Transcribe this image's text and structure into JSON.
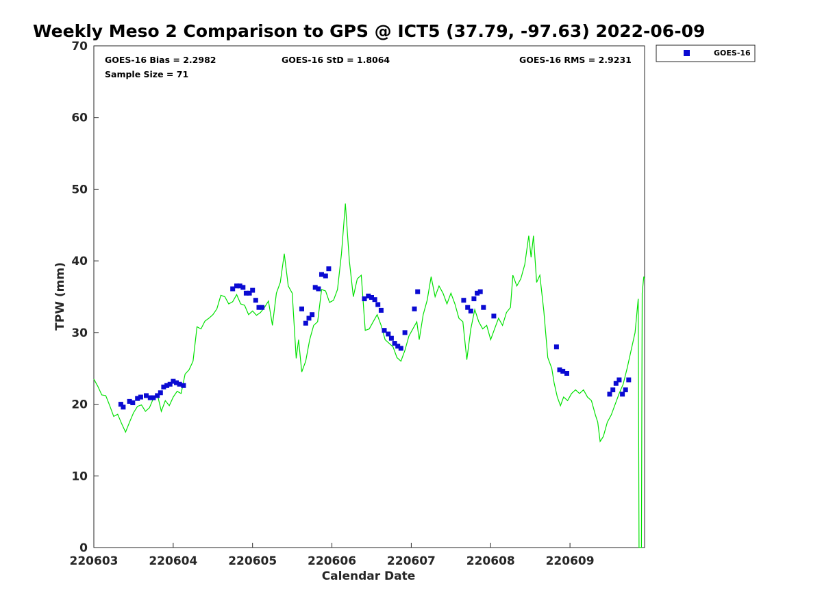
{
  "chart_data": {
    "type": "scatter",
    "title": "Weekly Meso 2 Comparison to GPS @ ICT5 (37.79, -97.63) 2022-06-09",
    "xlabel": "Calendar Date",
    "ylabel": "TPW (mm)",
    "xlim": [
      220603,
      220609.94
    ],
    "ylim": [
      0,
      70
    ],
    "x_ticks": [
      "220603",
      "220604",
      "220605",
      "220606",
      "220607",
      "220608",
      "220609"
    ],
    "y_ticks": [
      "0",
      "10",
      "20",
      "30",
      "40",
      "50",
      "60",
      "70"
    ],
    "grid": false,
    "legend_position": "outside-top-right",
    "stats": {
      "bias": "GOES-16 Bias = 2.2982",
      "std": "GOES-16 StD = 1.8064",
      "rms": "GOES-16 RMS = 2.9231",
      "sample": "Sample Size = 71"
    },
    "series": [
      {
        "name": "GOES-16",
        "kind": "scatter",
        "marker": "square",
        "color": "#0a0ad2",
        "points": [
          [
            220603.34,
            20.0
          ],
          [
            220603.37,
            19.6
          ],
          [
            220603.45,
            20.4
          ],
          [
            220603.49,
            20.2
          ],
          [
            220603.55,
            20.8
          ],
          [
            220603.59,
            21.0
          ],
          [
            220603.66,
            21.2
          ],
          [
            220603.71,
            20.9
          ],
          [
            220603.75,
            20.9
          ],
          [
            220603.8,
            21.2
          ],
          [
            220603.84,
            21.6
          ],
          [
            220603.88,
            22.4
          ],
          [
            220603.92,
            22.6
          ],
          [
            220603.96,
            22.8
          ],
          [
            220604.0,
            23.2
          ],
          [
            220604.04,
            23.0
          ],
          [
            220604.08,
            22.8
          ],
          [
            220604.13,
            22.6
          ],
          [
            220604.75,
            36.1
          ],
          [
            220604.8,
            36.5
          ],
          [
            220604.84,
            36.5
          ],
          [
            220604.88,
            36.3
          ],
          [
            220604.92,
            35.5
          ],
          [
            220604.96,
            35.5
          ],
          [
            220605.0,
            35.9
          ],
          [
            220605.04,
            34.5
          ],
          [
            220605.08,
            33.5
          ],
          [
            220605.12,
            33.5
          ],
          [
            220605.62,
            33.3
          ],
          [
            220605.67,
            31.3
          ],
          [
            220605.71,
            32.0
          ],
          [
            220605.75,
            32.5
          ],
          [
            220605.79,
            36.3
          ],
          [
            220605.83,
            36.1
          ],
          [
            220605.87,
            38.1
          ],
          [
            220605.92,
            37.9
          ],
          [
            220605.96,
            38.9
          ],
          [
            220606.41,
            34.7
          ],
          [
            220606.46,
            35.1
          ],
          [
            220606.5,
            34.9
          ],
          [
            220606.54,
            34.6
          ],
          [
            220606.58,
            33.9
          ],
          [
            220606.62,
            33.1
          ],
          [
            220606.66,
            30.3
          ],
          [
            220606.71,
            29.8
          ],
          [
            220606.75,
            29.2
          ],
          [
            220606.79,
            28.5
          ],
          [
            220606.83,
            28.1
          ],
          [
            220606.87,
            27.8
          ],
          [
            220606.92,
            30.0
          ],
          [
            220607.04,
            33.3
          ],
          [
            220607.08,
            35.7
          ],
          [
            220607.66,
            34.5
          ],
          [
            220607.71,
            33.5
          ],
          [
            220607.75,
            33.0
          ],
          [
            220607.79,
            34.7
          ],
          [
            220607.83,
            35.5
          ],
          [
            220607.87,
            35.7
          ],
          [
            220607.91,
            33.5
          ],
          [
            220608.04,
            32.3
          ],
          [
            220608.83,
            28.0
          ],
          [
            220608.87,
            24.8
          ],
          [
            220608.91,
            24.6
          ],
          [
            220608.96,
            24.3
          ],
          [
            220609.5,
            21.4
          ],
          [
            220609.54,
            22.0
          ],
          [
            220609.58,
            22.9
          ],
          [
            220609.62,
            23.4
          ],
          [
            220609.66,
            21.4
          ],
          [
            220609.7,
            22.0
          ],
          [
            220609.74,
            23.4
          ]
        ]
      },
      {
        "name": "GPS",
        "kind": "line",
        "color": "#00e100",
        "points": [
          [
            220603.0,
            23.5
          ],
          [
            220603.05,
            22.5
          ],
          [
            220603.1,
            21.3
          ],
          [
            220603.15,
            21.2
          ],
          [
            220603.2,
            19.8
          ],
          [
            220603.25,
            18.3
          ],
          [
            220603.3,
            18.6
          ],
          [
            220603.35,
            17.3
          ],
          [
            220603.4,
            16.1
          ],
          [
            220603.45,
            17.5
          ],
          [
            220603.5,
            18.8
          ],
          [
            220603.55,
            19.7
          ],
          [
            220603.6,
            19.9
          ],
          [
            220603.65,
            19.0
          ],
          [
            220603.7,
            19.5
          ],
          [
            220603.75,
            20.8
          ],
          [
            220603.8,
            21.4
          ],
          [
            220603.85,
            19.0
          ],
          [
            220603.9,
            20.5
          ],
          [
            220603.95,
            19.8
          ],
          [
            220604.0,
            21.0
          ],
          [
            220604.05,
            21.8
          ],
          [
            220604.1,
            21.5
          ],
          [
            220604.15,
            24.2
          ],
          [
            220604.2,
            24.8
          ],
          [
            220604.25,
            26.0
          ],
          [
            220604.3,
            30.8
          ],
          [
            220604.35,
            30.5
          ],
          [
            220604.4,
            31.6
          ],
          [
            220604.45,
            32.0
          ],
          [
            220604.5,
            32.5
          ],
          [
            220604.55,
            33.3
          ],
          [
            220604.6,
            35.2
          ],
          [
            220604.65,
            35.0
          ],
          [
            220604.7,
            34.0
          ],
          [
            220604.75,
            34.3
          ],
          [
            220604.8,
            35.3
          ],
          [
            220604.85,
            34.0
          ],
          [
            220604.9,
            33.8
          ],
          [
            220604.95,
            32.5
          ],
          [
            220605.0,
            33.0
          ],
          [
            220605.05,
            32.4
          ],
          [
            220605.1,
            32.8
          ],
          [
            220605.15,
            33.5
          ],
          [
            220605.2,
            34.4
          ],
          [
            220605.25,
            31.0
          ],
          [
            220605.3,
            35.5
          ],
          [
            220605.35,
            37.0
          ],
          [
            220605.4,
            41.0
          ],
          [
            220605.45,
            36.5
          ],
          [
            220605.5,
            35.5
          ],
          [
            220605.55,
            26.4
          ],
          [
            220605.58,
            29.0
          ],
          [
            220605.62,
            24.5
          ],
          [
            220605.67,
            26.0
          ],
          [
            220605.72,
            29.0
          ],
          [
            220605.77,
            31.0
          ],
          [
            220605.82,
            31.5
          ],
          [
            220605.87,
            36.0
          ],
          [
            220605.92,
            35.8
          ],
          [
            220605.97,
            34.2
          ],
          [
            220606.02,
            34.5
          ],
          [
            220606.07,
            36.0
          ],
          [
            220606.12,
            41.0
          ],
          [
            220606.17,
            48.0
          ],
          [
            220606.22,
            40.0
          ],
          [
            220606.27,
            35.0
          ],
          [
            220606.32,
            37.5
          ],
          [
            220606.37,
            38.0
          ],
          [
            220606.42,
            30.3
          ],
          [
            220606.47,
            30.5
          ],
          [
            220606.52,
            31.5
          ],
          [
            220606.57,
            32.5
          ],
          [
            220606.62,
            31.0
          ],
          [
            220606.67,
            29.0
          ],
          [
            220606.72,
            28.5
          ],
          [
            220606.77,
            28.0
          ],
          [
            220606.82,
            26.5
          ],
          [
            220606.87,
            26.0
          ],
          [
            220606.92,
            27.5
          ],
          [
            220606.97,
            29.5
          ],
          [
            220607.02,
            30.5
          ],
          [
            220607.07,
            31.5
          ],
          [
            220607.1,
            29.0
          ],
          [
            220607.15,
            32.5
          ],
          [
            220607.2,
            34.5
          ],
          [
            220607.25,
            37.8
          ],
          [
            220607.3,
            35.0
          ],
          [
            220607.35,
            36.5
          ],
          [
            220607.4,
            35.5
          ],
          [
            220607.45,
            34.0
          ],
          [
            220607.5,
            35.5
          ],
          [
            220607.55,
            34.0
          ],
          [
            220607.6,
            32.0
          ],
          [
            220607.65,
            31.5
          ],
          [
            220607.7,
            26.2
          ],
          [
            220607.75,
            30.5
          ],
          [
            220607.8,
            33.2
          ],
          [
            220607.85,
            31.5
          ],
          [
            220607.9,
            30.5
          ],
          [
            220607.95,
            31.0
          ],
          [
            220608.0,
            29.0
          ],
          [
            220608.05,
            30.5
          ],
          [
            220608.1,
            32.0
          ],
          [
            220608.15,
            31.0
          ],
          [
            220608.2,
            32.8
          ],
          [
            220608.25,
            33.5
          ],
          [
            220608.28,
            38.0
          ],
          [
            220608.33,
            36.5
          ],
          [
            220608.38,
            37.5
          ],
          [
            220608.43,
            39.5
          ],
          [
            220608.48,
            43.5
          ],
          [
            220608.51,
            40.5
          ],
          [
            220608.54,
            43.5
          ],
          [
            220608.58,
            37.0
          ],
          [
            220608.62,
            38.0
          ],
          [
            220608.67,
            33.0
          ],
          [
            220608.72,
            26.5
          ],
          [
            220608.77,
            25.0
          ],
          [
            220608.8,
            23.0
          ],
          [
            220608.84,
            21.0
          ],
          [
            220608.88,
            19.8
          ],
          [
            220608.92,
            21.0
          ],
          [
            220608.97,
            20.5
          ],
          [
            220609.02,
            21.5
          ],
          [
            220609.07,
            22.0
          ],
          [
            220609.12,
            21.5
          ],
          [
            220609.17,
            22.0
          ],
          [
            220609.22,
            21.0
          ],
          [
            220609.27,
            20.5
          ],
          [
            220609.32,
            18.5
          ],
          [
            220609.35,
            17.5
          ],
          [
            220609.38,
            14.8
          ],
          [
            220609.42,
            15.5
          ],
          [
            220609.47,
            17.5
          ],
          [
            220609.52,
            18.5
          ],
          [
            220609.57,
            20.0
          ],
          [
            220609.62,
            21.5
          ],
          [
            220609.67,
            22.8
          ],
          [
            220609.72,
            25.0
          ],
          [
            220609.77,
            27.5
          ],
          [
            220609.82,
            30.0
          ],
          [
            220609.86,
            34.7
          ],
          [
            220609.87,
            0.0
          ],
          [
            220609.9,
            0.0
          ],
          [
            220609.91,
            35.5
          ],
          [
            220609.93,
            37.8
          ],
          [
            220609.94,
            37.5
          ]
        ]
      }
    ]
  }
}
